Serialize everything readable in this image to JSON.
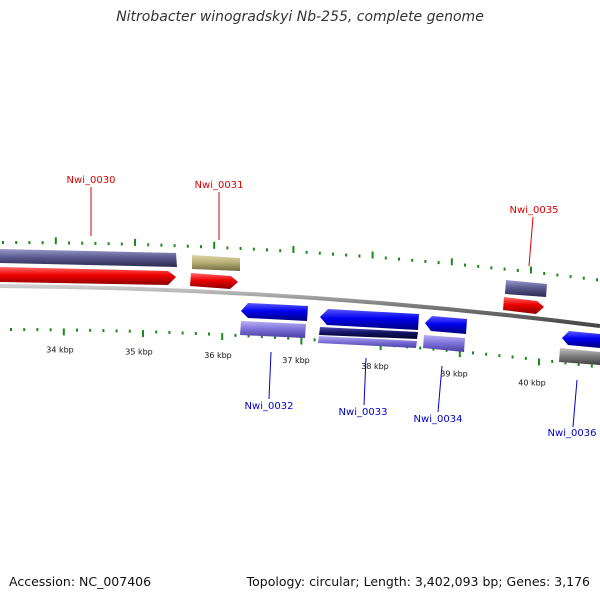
{
  "title": "Nitrobacter winogradskyi Nb-255, complete genome",
  "footer": {
    "accession": "Accession: NC_007406",
    "summary": "Topology: circular; Length: 3,402,093 bp; Genes: 3,176"
  },
  "colors": {
    "forward_label": "#dd0000",
    "reverse_label": "#0000cc",
    "tick_mark": "#1a8a1a",
    "backbone": "#8a8a8a",
    "cds_red": "#ee0000",
    "cds_blue": "#0000ee",
    "gene_slate": "#55558a",
    "gene_khaki": "#b5ad72",
    "gene_lavender": "#7b6fd8",
    "gene_navy": "#101060",
    "gene_gray": "#7a7a7a"
  },
  "scale_labels": [
    "34 kbp",
    "35 kbp",
    "36 kbp",
    "37 kbp",
    "38 kbp",
    "39 kbp",
    "40 kbp"
  ],
  "genes": [
    {
      "id": "Nwi_0030",
      "strand": "forward"
    },
    {
      "id": "Nwi_0031",
      "strand": "forward"
    },
    {
      "id": "Nwi_0035",
      "strand": "forward"
    },
    {
      "id": "Nwi_0032",
      "strand": "reverse"
    },
    {
      "id": "Nwi_0033",
      "strand": "reverse"
    },
    {
      "id": "Nwi_0034",
      "strand": "reverse"
    },
    {
      "id": "Nwi_0036",
      "strand": "reverse"
    }
  ]
}
